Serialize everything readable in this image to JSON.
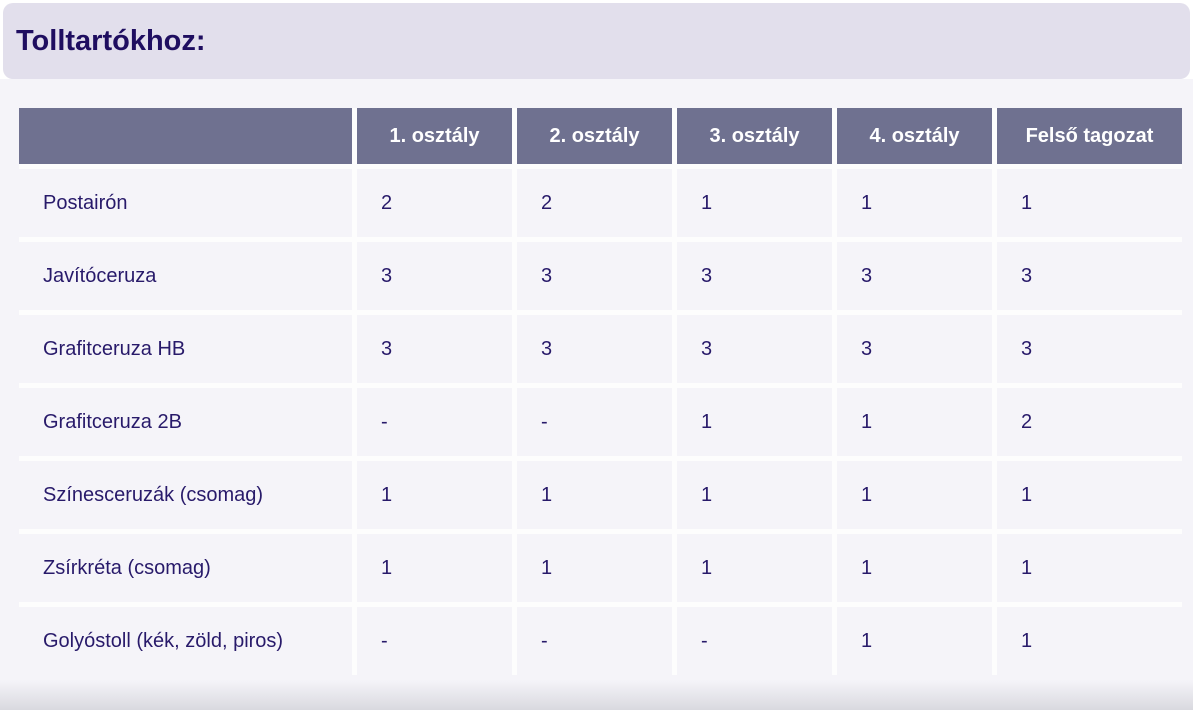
{
  "title": "Tolltartókhoz:",
  "colors": {
    "title_band_bg": "#e2dfec",
    "title_text": "#1f0e60",
    "header_bg": "#6f7190",
    "header_text": "#ffffff",
    "cell_bg": "#f5f4f9",
    "cell_text": "#281a6a",
    "page_bg": "#f5f4f9",
    "grid_gap": "#fdfdfd"
  },
  "table": {
    "headers": [
      "",
      "1. osztály",
      "2. osztály",
      "3. osztály",
      "4. osztály",
      "Felső tagozat"
    ],
    "rows": [
      {
        "label": "Postairón",
        "values": [
          "2",
          "2",
          "1",
          "1",
          "1"
        ]
      },
      {
        "label": "Javítóceruza",
        "values": [
          "3",
          "3",
          "3",
          "3",
          "3"
        ]
      },
      {
        "label": "Grafitceruza HB",
        "values": [
          "3",
          "3",
          "3",
          "3",
          "3"
        ]
      },
      {
        "label": "Grafitceruza 2B",
        "values": [
          "-",
          "-",
          "1",
          "1",
          "2"
        ]
      },
      {
        "label": "Színesceruzák (csomag)",
        "values": [
          "1",
          "1",
          "1",
          "1",
          "1"
        ]
      },
      {
        "label": "Zsírkréta (csomag)",
        "values": [
          "1",
          "1",
          "1",
          "1",
          "1"
        ]
      },
      {
        "label": "Golyóstoll (kék, zöld, piros)",
        "values": [
          "-",
          "-",
          "-",
          "1",
          "1"
        ]
      }
    ]
  }
}
